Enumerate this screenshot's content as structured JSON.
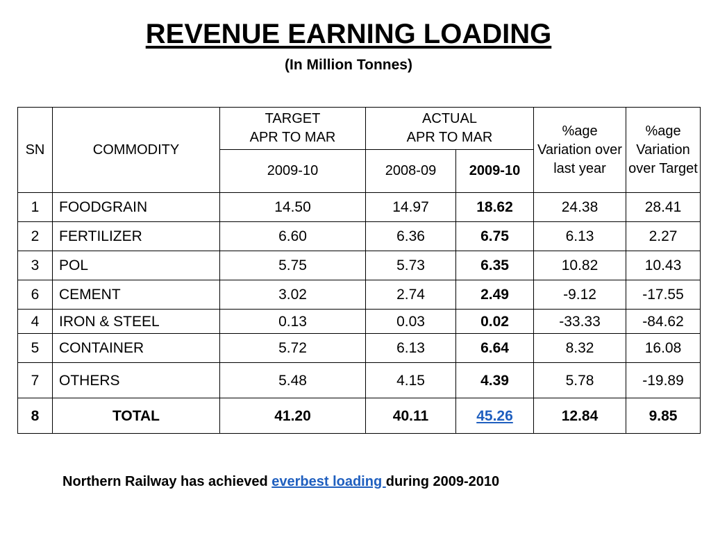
{
  "title": "REVENUE EARNING LOADING",
  "subtitle": "(In Million Tonnes)",
  "table": {
    "headers": {
      "sn": "SN",
      "commodity": "COMMODITY",
      "target_line1": "TARGET",
      "target_line2": "APR TO MAR",
      "actual_line1": "ACTUAL",
      "actual_line2": "APR TO MAR",
      "var_last_year": "%age Variation over last year",
      "var_target": "%age Variation over Target",
      "target_year": "2009-10",
      "actual_prev_year": "2008-09",
      "actual_year": "2009-10"
    },
    "rows": [
      {
        "sn": "1",
        "commodity": "FOODGRAIN",
        "target": "14.50",
        "actual_prev": "14.97",
        "actual": "18.62",
        "var_last": "24.38",
        "var_target": "28.41"
      },
      {
        "sn": "2",
        "commodity": "FERTILIZER",
        "target": "6.60",
        "actual_prev": "6.36",
        "actual": "6.75",
        "var_last": "6.13",
        "var_target": "2.27"
      },
      {
        "sn": "3",
        "commodity": "POL",
        "target": "5.75",
        "actual_prev": "5.73",
        "actual": "6.35",
        "var_last": "10.82",
        "var_target": "10.43"
      },
      {
        "sn": "6",
        "commodity": "CEMENT",
        "target": "3.02",
        "actual_prev": "2.74",
        "actual": "2.49",
        "var_last": "-9.12",
        "var_target": "-17.55"
      },
      {
        "sn": "4",
        "commodity": "IRON & STEEL",
        "target": "0.13",
        "actual_prev": "0.03",
        "actual": "0.02",
        "var_last": "-33.33",
        "var_target": "-84.62"
      },
      {
        "sn": "5",
        "commodity": "CONTAINER",
        "target": "5.72",
        "actual_prev": "6.13",
        "actual": "6.64",
        "var_last": "8.32",
        "var_target": "16.08"
      },
      {
        "sn": "7",
        "commodity": "OTHERS",
        "target": "5.48",
        "actual_prev": "4.15",
        "actual": "4.39",
        "var_last": "5.78",
        "var_target": "-19.89"
      }
    ],
    "total": {
      "sn": "8",
      "commodity": "TOTAL",
      "target": "41.20",
      "actual_prev": "40.11",
      "actual": "45.26",
      "var_last": "12.84",
      "var_target": "9.85"
    }
  },
  "footer": {
    "prefix": "Northern Railway has achieved ",
    "link": "everbest loading ",
    "suffix": "during 2009-2010"
  },
  "colors": {
    "link": "#1f5fbf"
  }
}
